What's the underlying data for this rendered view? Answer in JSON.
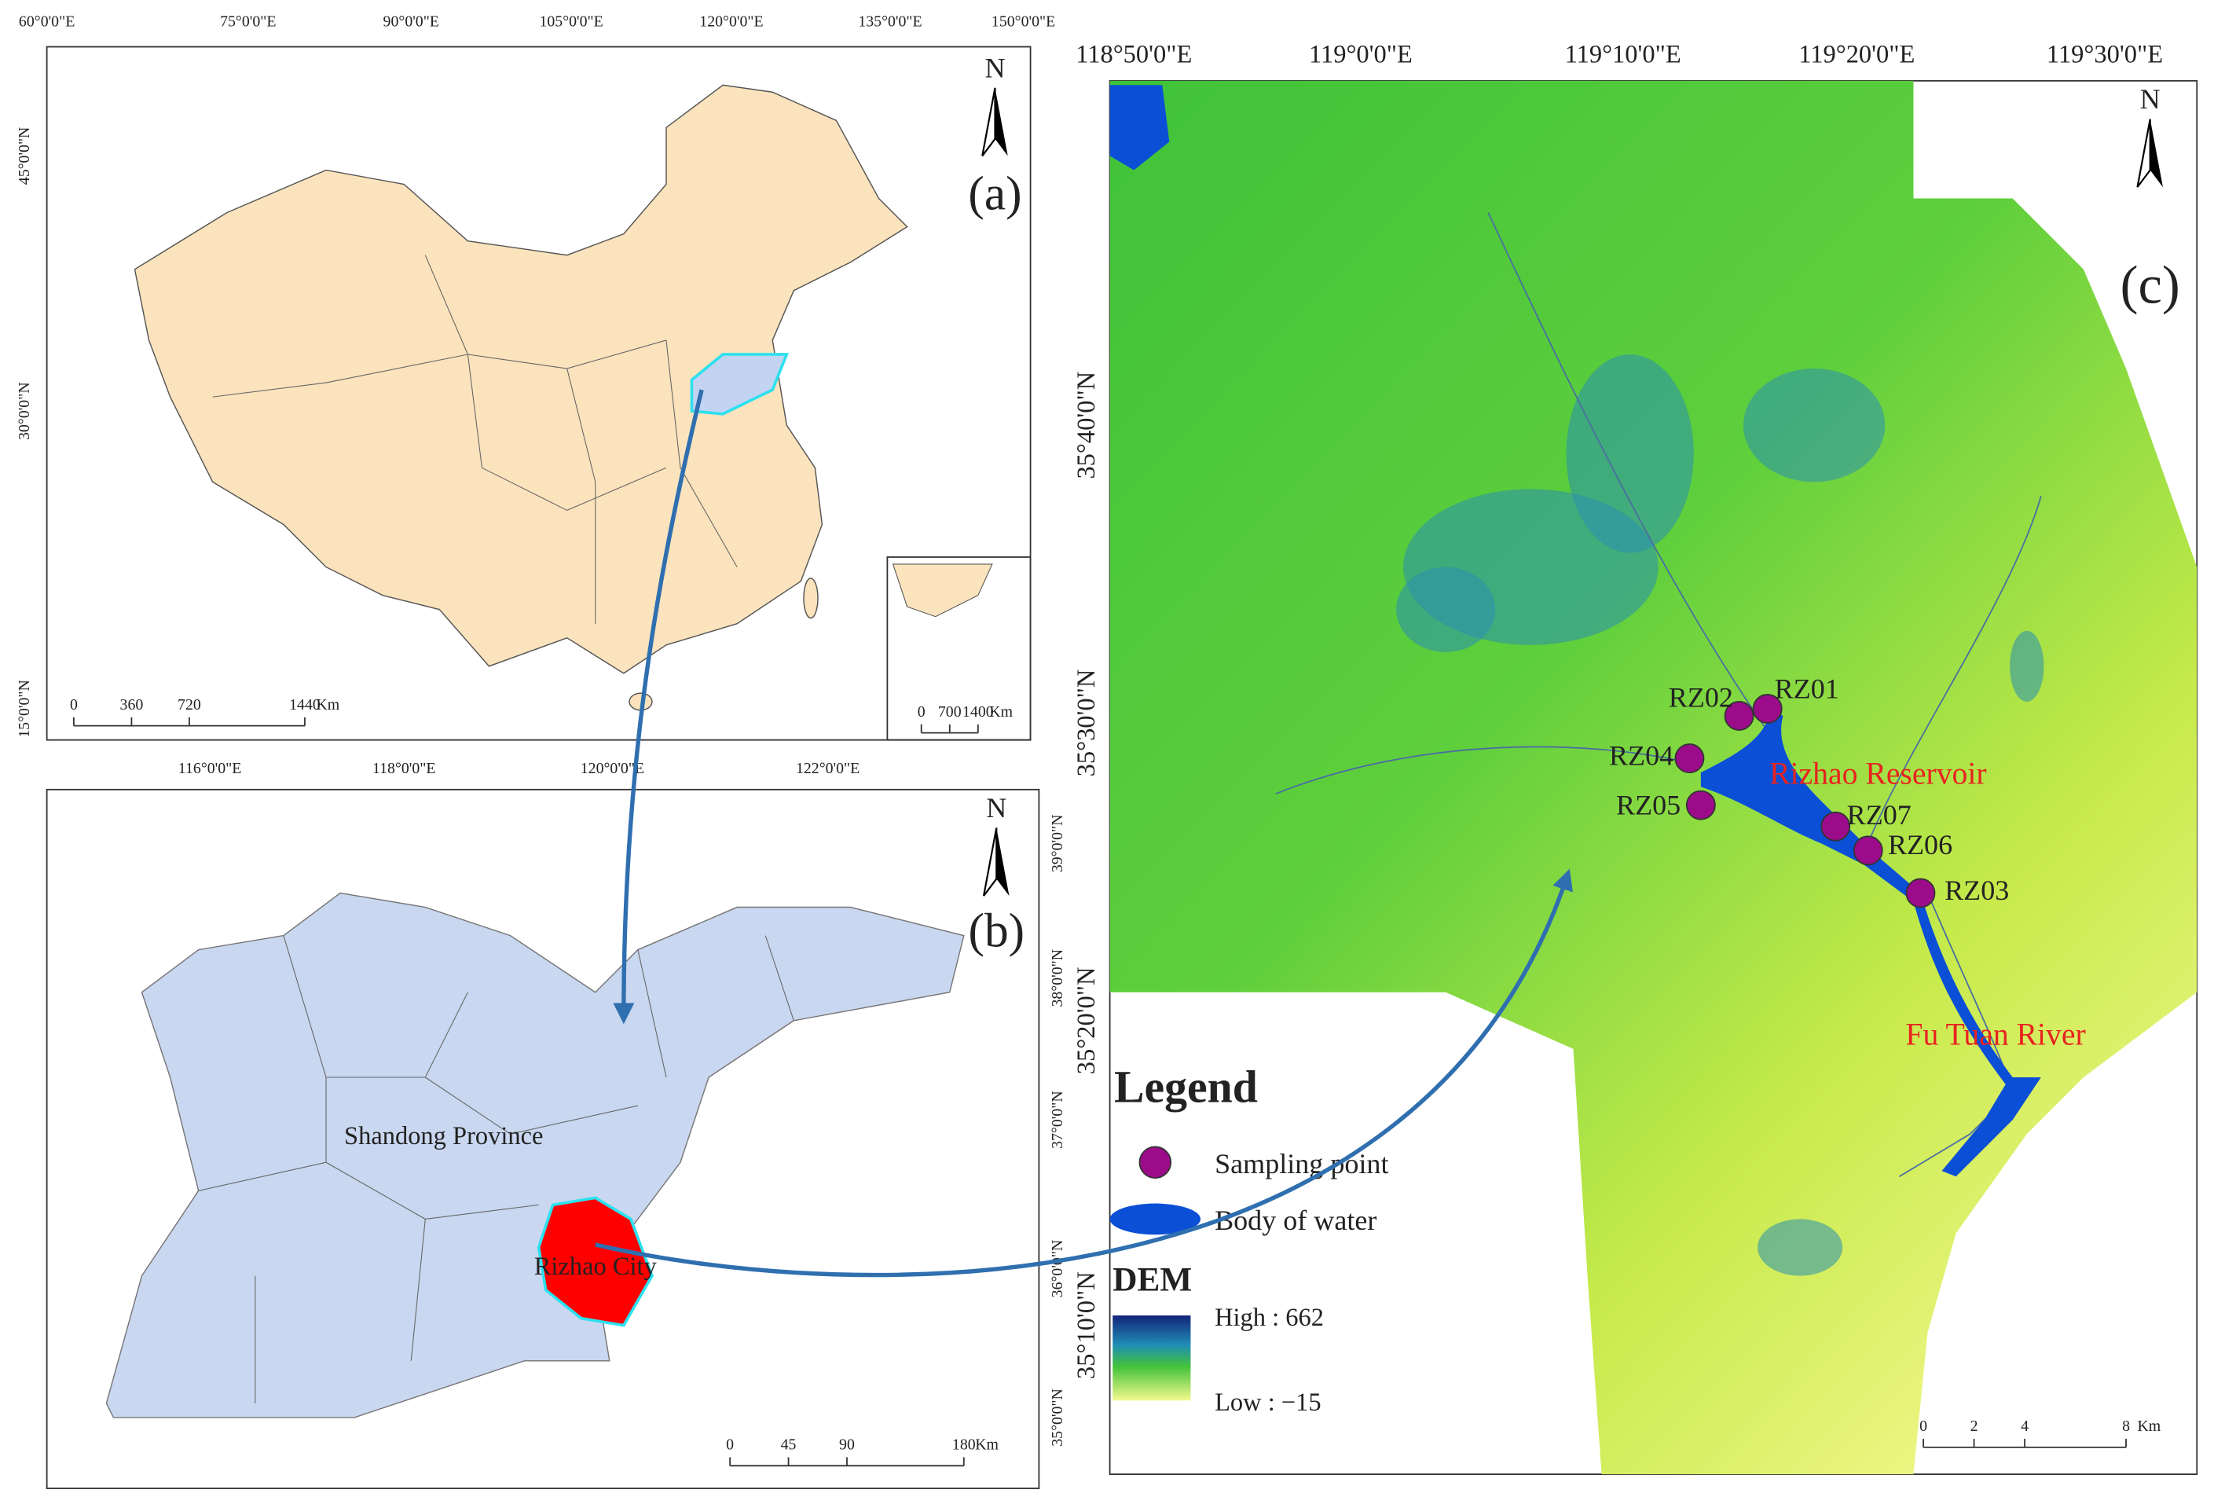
{
  "panel_a": {
    "label": "(a)",
    "north": "N",
    "lon_ticks": [
      "60°0'0\"E",
      "75°0'0\"E",
      "90°0'0\"E",
      "105°0'0\"E",
      "120°0'0\"E",
      "135°0'0\"E",
      "150°0'0\"E"
    ],
    "lat_ticks": [
      "45°0'0\"N",
      "30°0'0\"N",
      "15°0'0\"N"
    ],
    "scale_bar": {
      "ticks": [
        0,
        360,
        720,
        1440
      ],
      "unit": "Km"
    },
    "inset_scale": {
      "ticks": [
        0,
        700,
        1400
      ],
      "unit": "Km"
    }
  },
  "panel_b": {
    "label": "(b)",
    "north": "N",
    "lon_ticks": [
      "116°0'0\"E",
      "118°0'0\"E",
      "120°0'0\"E",
      "122°0'0\"E"
    ],
    "lat_ticks": [
      "39°0'0\"N",
      "38°0'0\"N",
      "37°0'0\"N",
      "36°0'0\"N",
      "35°0'0\"N"
    ],
    "regions": [
      "Shandong Province",
      "Rizhao City"
    ],
    "scale_bar": {
      "ticks": [
        0,
        45,
        90,
        180
      ],
      "unit": "Km"
    }
  },
  "panel_c": {
    "label": "(c)",
    "north": "N",
    "lon_ticks": [
      "118°50'0\"E",
      "119°0'0\"E",
      "119°10'0\"E",
      "119°20'0\"E",
      "119°30'0\"E"
    ],
    "lat_ticks": [
      "35°40'0\"N",
      "35°30'0\"N",
      "35°20'0\"N",
      "35°10'0\"N"
    ],
    "features": [
      "Rizhao Reservoir",
      "Fu Tuan River"
    ],
    "sampling_points": [
      "RZ01",
      "RZ02",
      "RZ03",
      "RZ04",
      "RZ05",
      "RZ06",
      "RZ07"
    ],
    "legend": {
      "title": "Legend",
      "items": [
        "Sampling point",
        "Body of water"
      ],
      "dem_title": "DEM",
      "dem_high": "High : 662",
      "dem_low": "Low : −15"
    },
    "scale_bar": {
      "ticks": [
        0,
        2,
        4,
        8
      ],
      "unit": "Km"
    }
  }
}
